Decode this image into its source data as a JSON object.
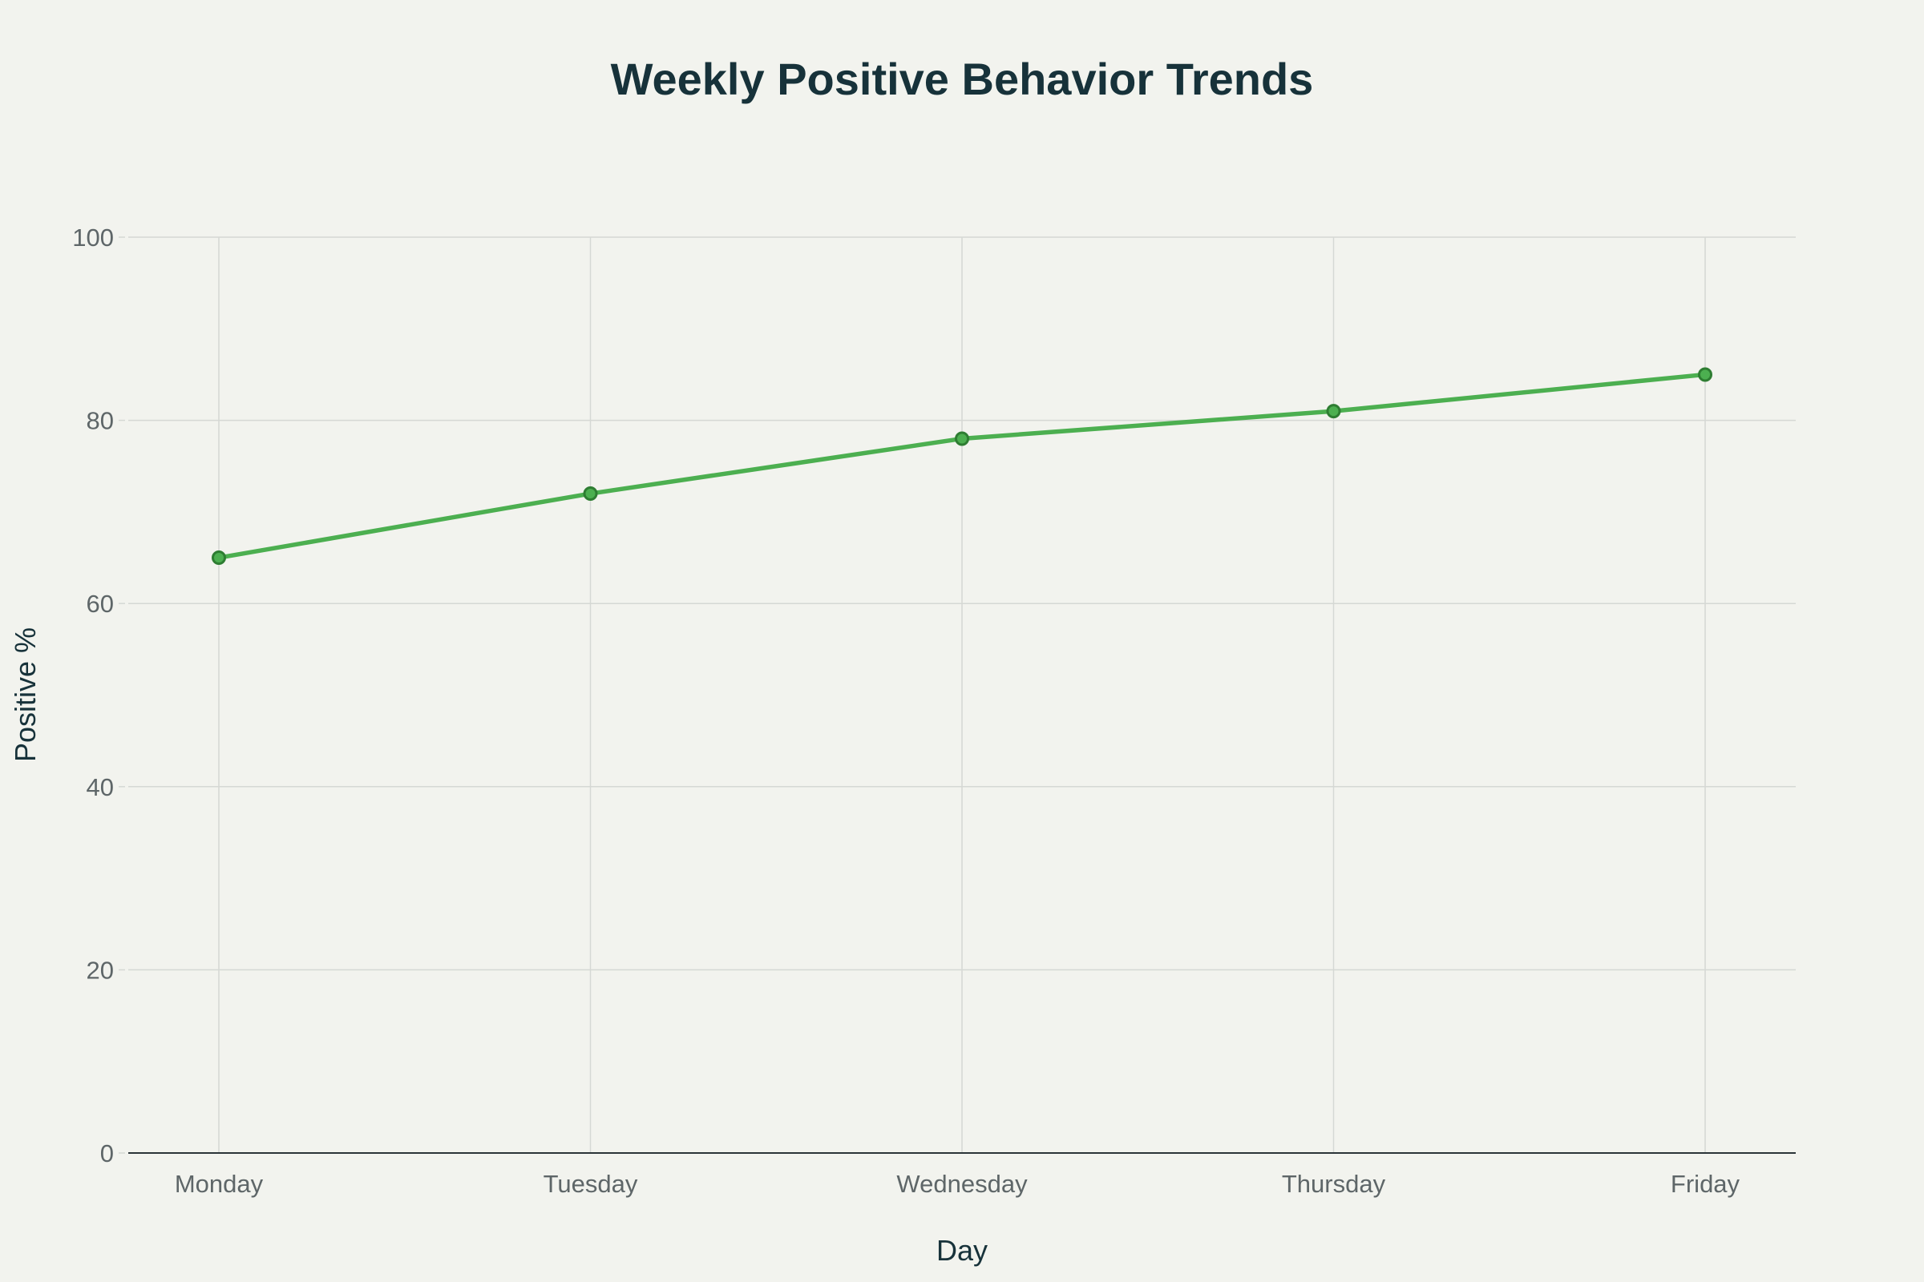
{
  "chart_data": {
    "type": "line",
    "title": "Weekly Positive Behavior Trends",
    "xlabel": "Day",
    "ylabel": "Positive %",
    "categories": [
      "Monday",
      "Tuesday",
      "Wednesday",
      "Thursday",
      "Friday"
    ],
    "series": [
      {
        "values": [
          65,
          72,
          78,
          81,
          85
        ],
        "color": "#4caf50",
        "marker_color": "#2e7d32"
      }
    ],
    "ylim": [
      0,
      100
    ],
    "yticks": [
      0,
      20,
      40,
      60,
      80,
      100
    ],
    "grid": true,
    "legend": "none"
  },
  "colors": {
    "background": "#f2f3ee",
    "grid": "#d5d8d4",
    "axis_line": "#2b3438",
    "title": "#17323a",
    "tick_text": "#5e6668"
  }
}
